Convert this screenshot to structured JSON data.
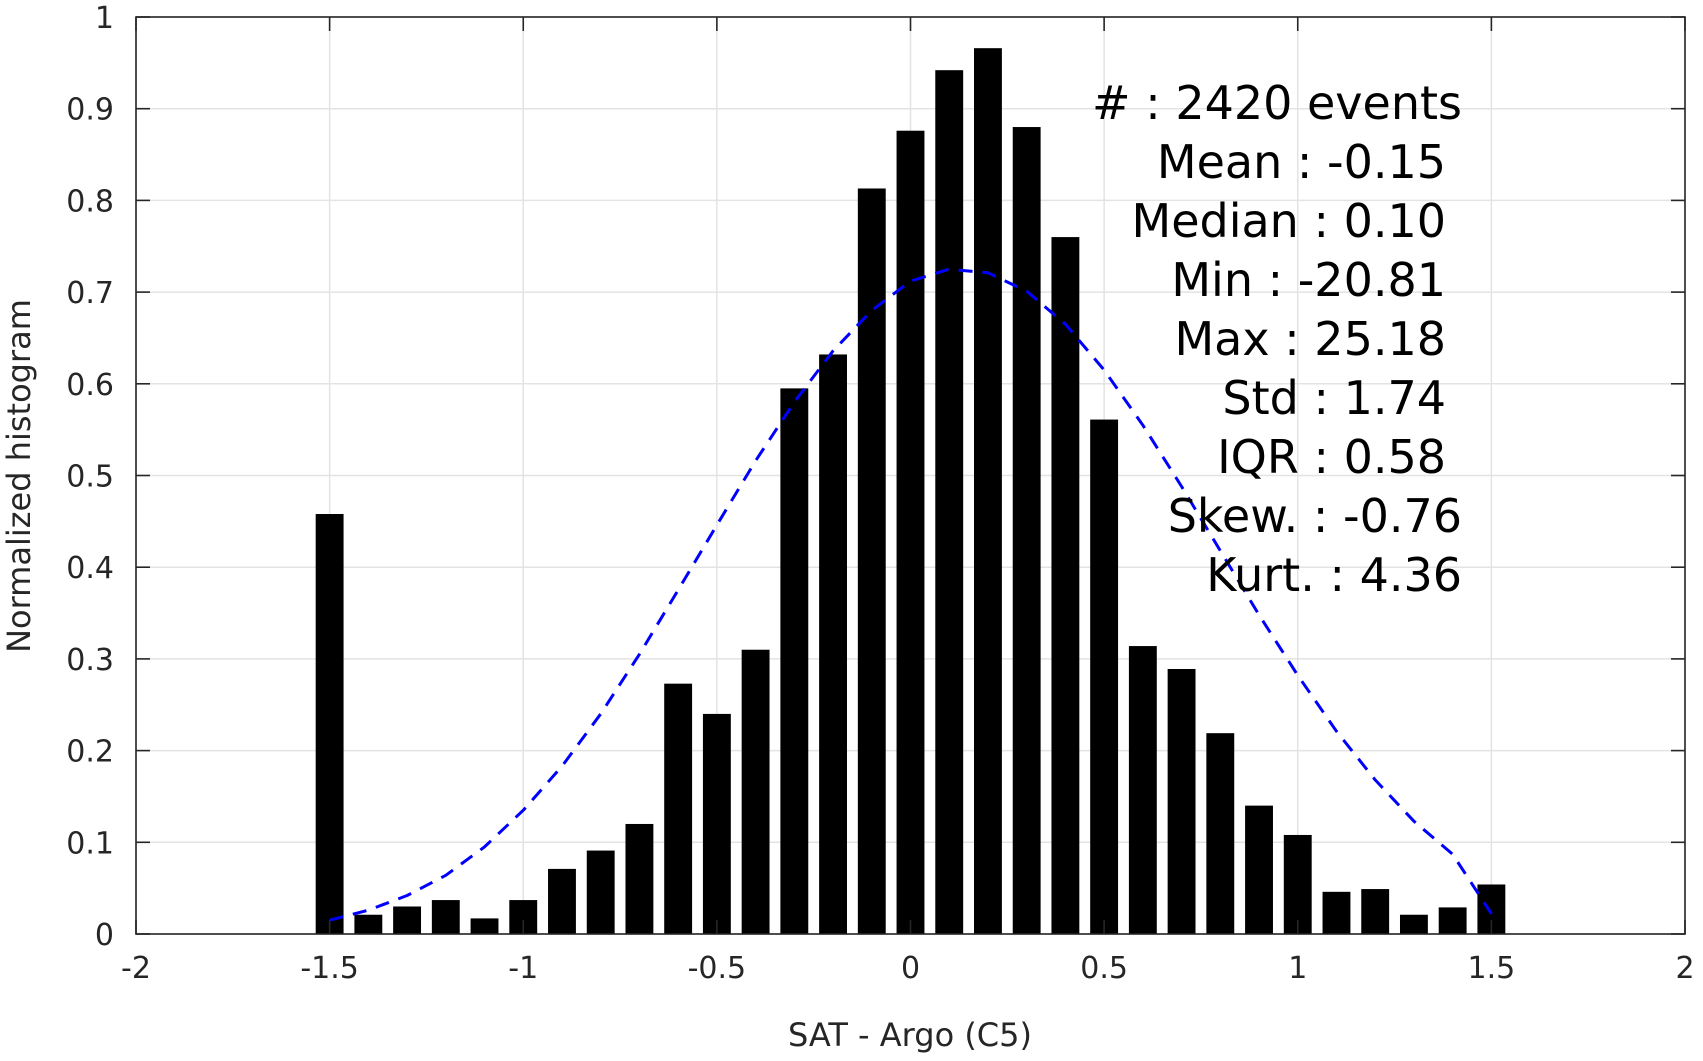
{
  "chart_data": {
    "type": "bar",
    "title": "",
    "xlabel": "SAT - Argo (C5)",
    "ylabel": "Normalized histogram",
    "xlim": [
      -2,
      2
    ],
    "ylim": [
      0,
      1
    ],
    "grid": true,
    "x_ticks": [
      -2,
      -1.5,
      -1,
      -0.5,
      0,
      0.5,
      1,
      1.5,
      2
    ],
    "x_tick_labels": [
      "-2",
      "-1.5",
      "-1",
      "-0.5",
      "0",
      "0.5",
      "1",
      "1.5",
      "2"
    ],
    "y_ticks": [
      0,
      0.1,
      0.2,
      0.3,
      0.4,
      0.5,
      0.6,
      0.7,
      0.8,
      0.9,
      1
    ],
    "y_tick_labels": [
      "0",
      "0.1",
      "0.2",
      "0.3",
      "0.4",
      "0.5",
      "0.6",
      "0.7",
      "0.8",
      "0.9",
      "1"
    ],
    "bar_color": "#000000",
    "x": [
      -1.5,
      -1.4,
      -1.3,
      -1.2,
      -1.1,
      -1.0,
      -0.9,
      -0.8,
      -0.7,
      -0.6,
      -0.5,
      -0.4,
      -0.3,
      -0.2,
      -0.1,
      0.0,
      0.1,
      0.2,
      0.3,
      0.4,
      0.5,
      0.6,
      0.7,
      0.8,
      0.9,
      1.0,
      1.1,
      1.2,
      1.3,
      1.4,
      1.5
    ],
    "values": [
      0.458,
      0.021,
      0.03,
      0.037,
      0.017,
      0.037,
      0.071,
      0.091,
      0.12,
      0.273,
      0.24,
      0.31,
      0.595,
      0.632,
      0.813,
      0.876,
      0.942,
      0.966,
      0.88,
      0.76,
      0.561,
      0.314,
      0.289,
      0.219,
      0.14,
      0.108,
      0.046,
      0.049,
      0.021,
      0.029,
      0.054
    ],
    "fit_curve": {
      "style": "dashed",
      "color": "#0000ff",
      "x": [
        -1.5,
        -1.4,
        -1.3,
        -1.2,
        -1.1,
        -1.0,
        -0.9,
        -0.8,
        -0.7,
        -0.6,
        -0.5,
        -0.4,
        -0.3,
        -0.2,
        -0.1,
        0.0,
        0.1,
        0.2,
        0.3,
        0.4,
        0.5,
        0.6,
        0.7,
        0.8,
        0.9,
        1.0,
        1.1,
        1.2,
        1.3,
        1.4,
        1.5
      ],
      "y": [
        0.015,
        0.026,
        0.042,
        0.064,
        0.095,
        0.135,
        0.183,
        0.24,
        0.305,
        0.375,
        0.446,
        0.516,
        0.58,
        0.636,
        0.68,
        0.712,
        0.725,
        0.721,
        0.701,
        0.665,
        0.615,
        0.555,
        0.488,
        0.418,
        0.348,
        0.282,
        0.221,
        0.168,
        0.123,
        0.087,
        0.022
      ]
    },
    "stats_lines": [
      "#  : 2420 events",
      "Mean : -0.15",
      "Median : 0.10",
      "Min : -20.81",
      "Max : 25.18",
      "Std : 1.74",
      "IQR : 0.58",
      "Skew. : -0.76",
      "Kurt. : 4.36"
    ],
    "stats_placement": "top-right"
  }
}
